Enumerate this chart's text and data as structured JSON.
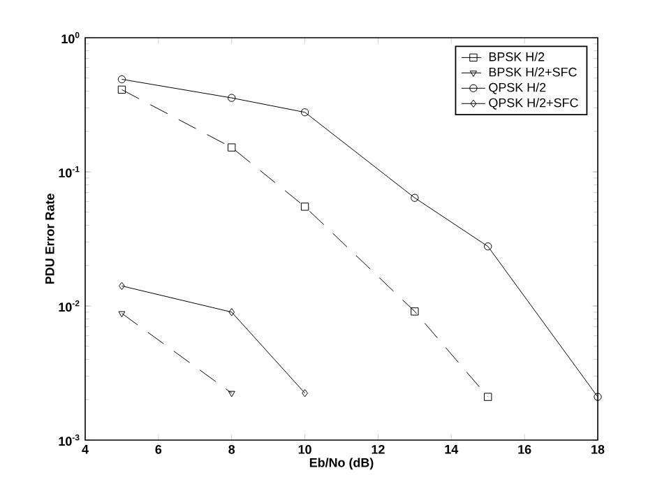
{
  "chart_data": {
    "type": "line",
    "xlabel": "Eb/No (dB)",
    "ylabel": "PDU Error Rate",
    "log": "y",
    "grid": false,
    "legend": "top right",
    "xlim": [
      4,
      18
    ],
    "xticks": [
      4,
      6,
      8,
      10,
      12,
      14,
      16,
      18
    ],
    "ylim": [
      0.001,
      1
    ],
    "yticks": [
      {
        "value": 0.001,
        "label": "10$^{-3}$"
      },
      {
        "value": 0.01,
        "label": "10$^{-2}$"
      },
      {
        "value": 0.1,
        "label": "10$^{-1}$"
      },
      {
        "value": 1,
        "label": "10$^{0}$"
      }
    ],
    "series": [
      {
        "name": "BPSK H/2",
        "color": "#000000",
        "marker": "square",
        "line_style": "dashed",
        "x": [
          5,
          8,
          10,
          13,
          15
        ],
        "values": [
          0.41,
          0.152,
          0.055,
          0.0091,
          0.0021
        ]
      },
      {
        "name": "BPSK H/2+SFC",
        "color": "#000000",
        "marker": "triangle",
        "line_style": "dashed",
        "x": [
          5,
          8
        ],
        "values": [
          0.0088,
          0.00224
        ]
      },
      {
        "name": "QPSK H/2",
        "color": "#000000",
        "marker": "circle",
        "line_style": "solid",
        "x": [
          5,
          8,
          10,
          13,
          15,
          18
        ],
        "values": [
          0.49,
          0.356,
          0.278,
          0.064,
          0.0278,
          0.0021
        ]
      },
      {
        "name": "QPSK H/2+SFC",
        "color": "#000000",
        "marker": "diamond",
        "line_style": "solid",
        "x": [
          5,
          8,
          10
        ],
        "values": [
          0.0141,
          0.009,
          0.00224
        ]
      }
    ]
  }
}
